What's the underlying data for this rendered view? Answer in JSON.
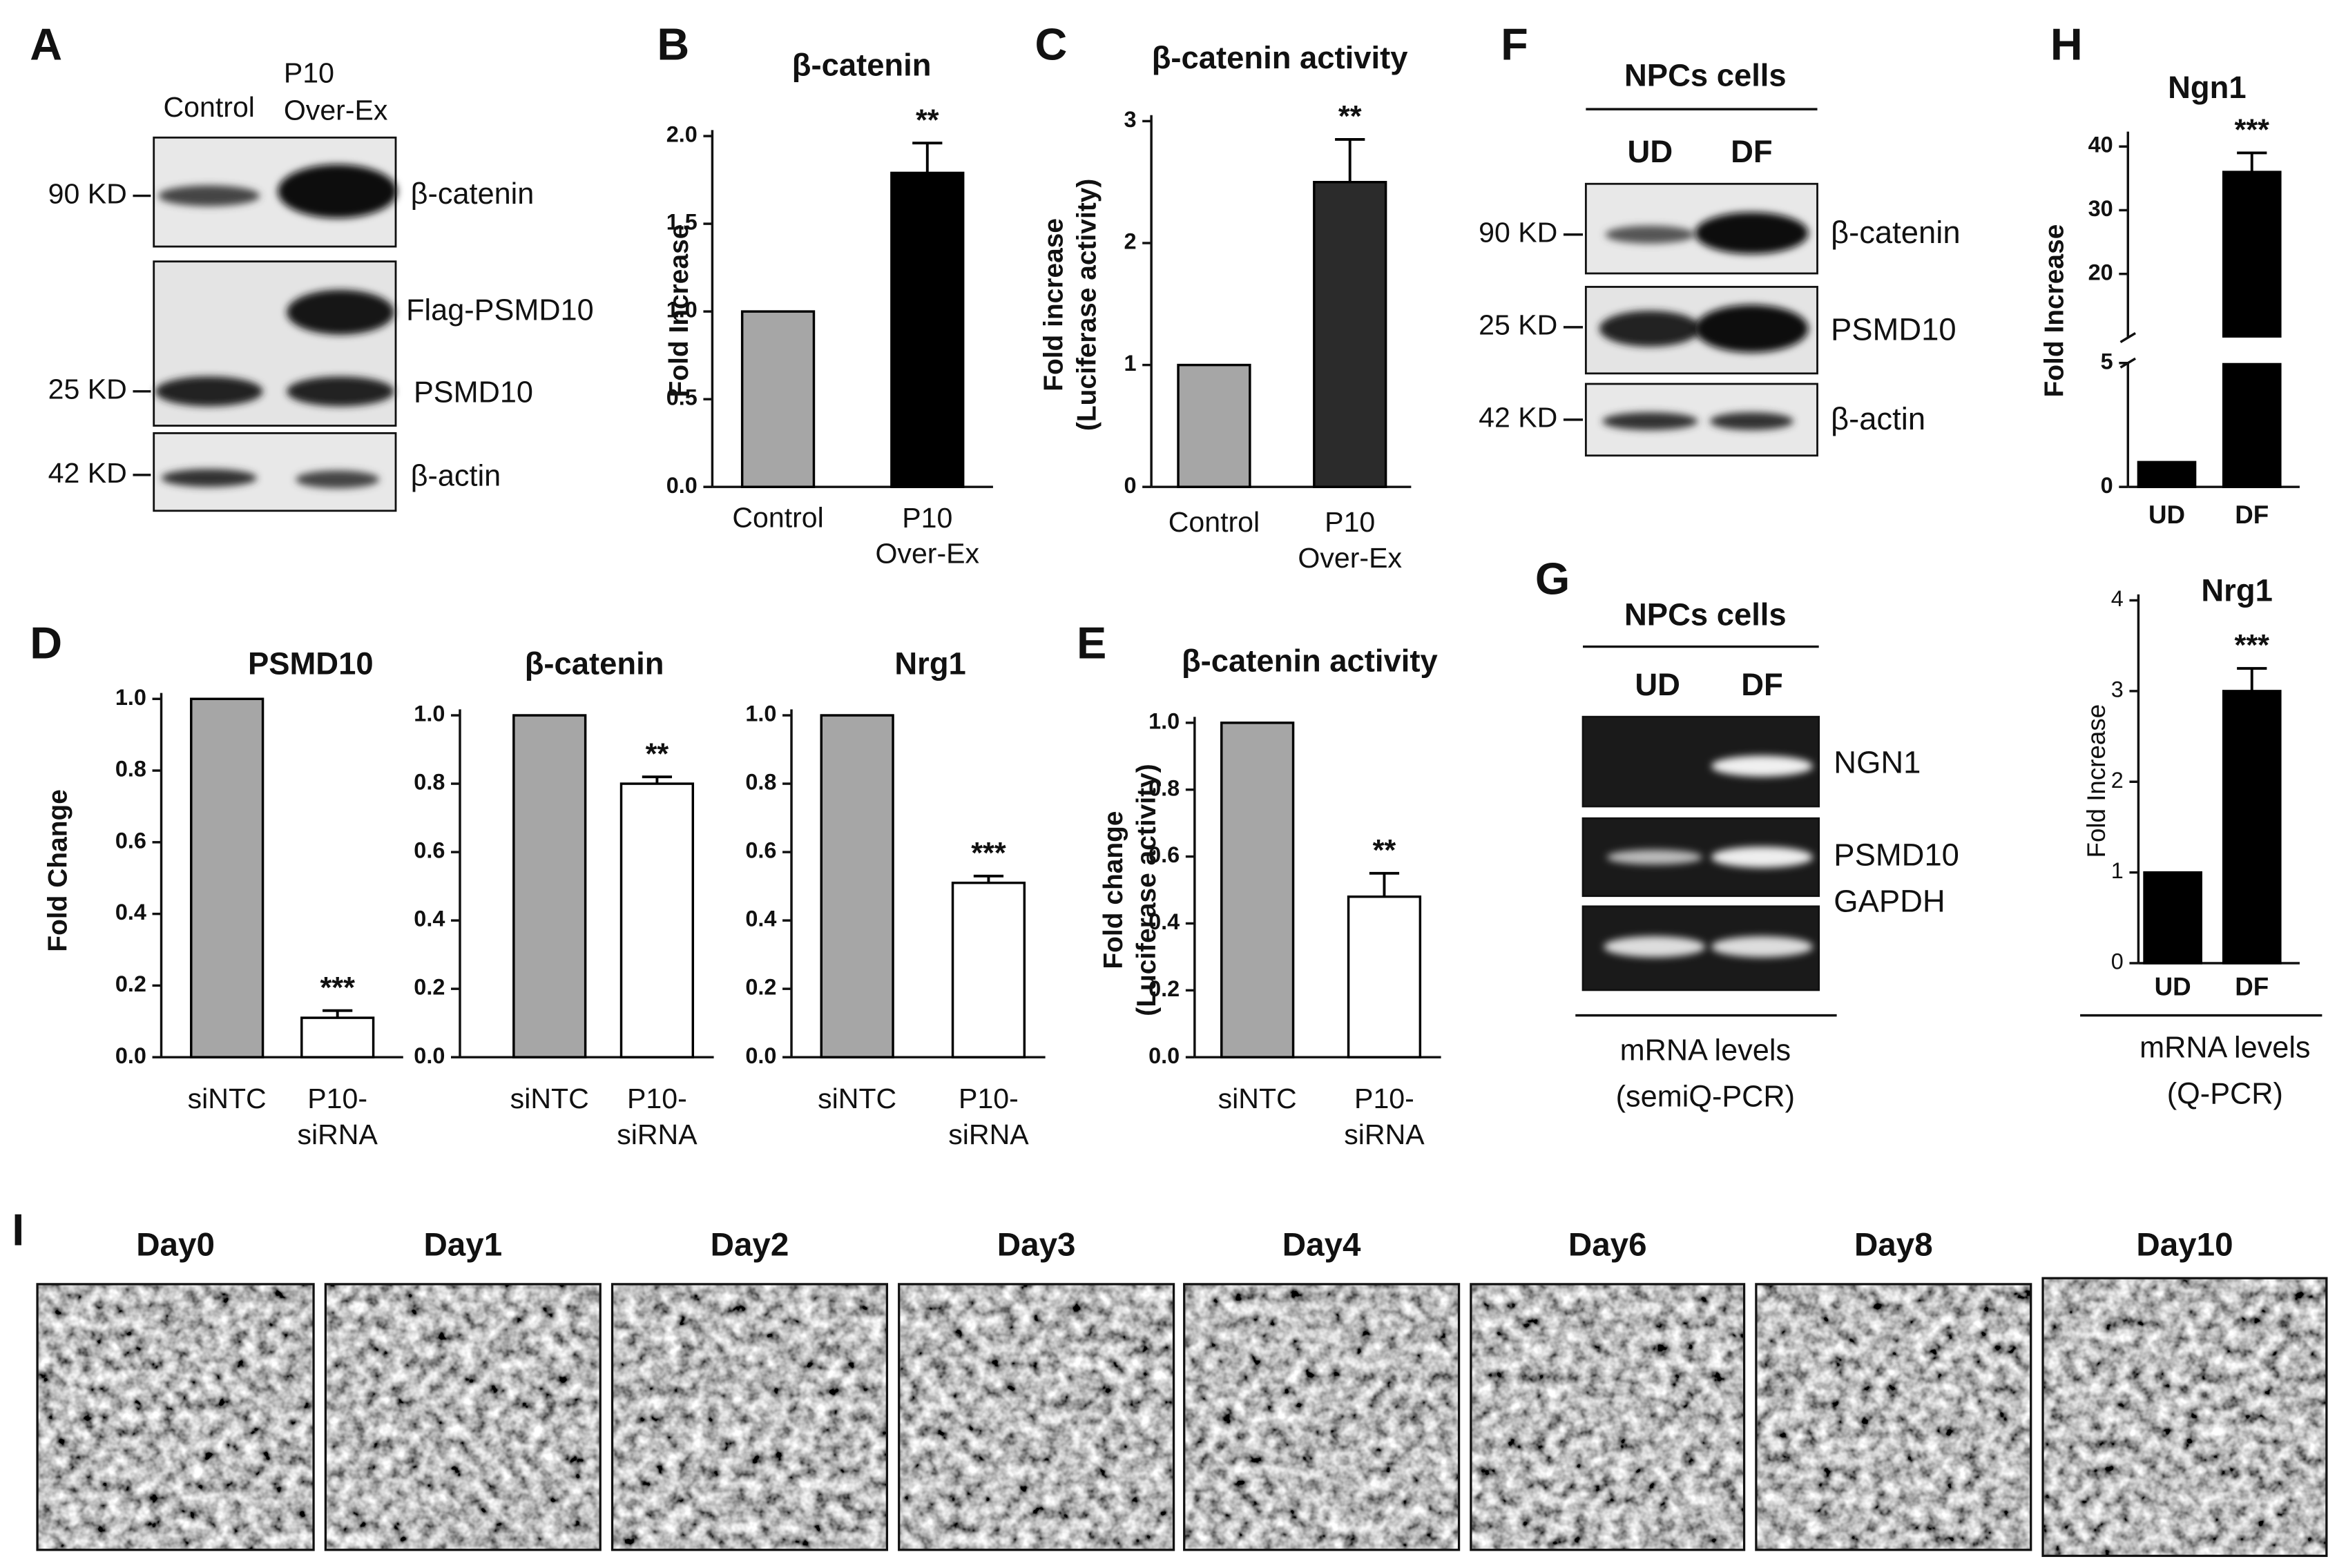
{
  "figure": {
    "panel_A": {
      "label": "A",
      "lanes": [
        "Control",
        [
          "P10",
          "Over-Ex"
        ]
      ],
      "markers": [
        "90 KD",
        "25 KD",
        "42 KD"
      ],
      "bands": [
        "β-catenin",
        "Flag-PSMD10",
        "PSMD10",
        "β-actin"
      ]
    },
    "panel_F": {
      "label": "F",
      "title": "NPCs cells",
      "lanes": [
        "UD",
        "DF"
      ],
      "markers": [
        "90 KD",
        "25 KD",
        "42 KD"
      ],
      "bands": [
        "β-catenin",
        "PSMD10",
        "β-actin"
      ]
    },
    "panel_G": {
      "label": "G",
      "title": "NPCs cells",
      "lanes": [
        "UD",
        "DF"
      ],
      "bands": [
        "NGN1",
        "PSMD10",
        "GAPDH"
      ],
      "footnote": [
        "mRNA levels",
        "(semiQ-PCR)"
      ]
    },
    "panel_I": {
      "label": "I",
      "days": [
        {
          "name": "Day0",
          "color": "#29abe2"
        },
        {
          "name": "Day1",
          "color": "#1fb04c"
        },
        {
          "name": "Day2",
          "color": "#999999"
        },
        {
          "name": "Day3",
          "color": "#4e8a2f"
        },
        {
          "name": "Day4",
          "color": "#ff0000"
        },
        {
          "name": "Day6",
          "color": "#cc0000"
        },
        {
          "name": "Day8",
          "color": "#1f3a7a"
        },
        {
          "name": "Day10",
          "color": "#111111"
        }
      ]
    }
  },
  "chart_data": [
    {
      "type": "bar",
      "panel_label": "B",
      "title": "β-catenin",
      "ylabel": [
        "Fold Increase"
      ],
      "categories": [
        "Control",
        [
          "P10",
          "Over-Ex"
        ]
      ],
      "values": [
        1.0,
        1.79
      ],
      "errors": [
        null,
        0.17
      ],
      "annotations": [
        null,
        "**"
      ],
      "colors": [
        "#a6a6a6",
        "#000000"
      ],
      "ylim": [
        0,
        2.0
      ],
      "yticks": [
        {
          "value": 0,
          "label": "0.0"
        },
        {
          "value": 0.5,
          "label": "0.5"
        },
        {
          "value": 1.0,
          "label": "1.0"
        },
        {
          "value": 1.5,
          "label": "1.5"
        },
        {
          "value": 2.0,
          "label": "2.0"
        }
      ]
    },
    {
      "type": "bar",
      "panel_label": "C",
      "title": "β-catenin activity",
      "ylabel": [
        "Fold increase",
        "(Luciferase activity)"
      ],
      "categories": [
        "Control",
        [
          "P10",
          "Over-Ex"
        ]
      ],
      "values": [
        1.0,
        2.5
      ],
      "errors": [
        null,
        0.35
      ],
      "annotations": [
        null,
        "**"
      ],
      "colors": [
        "#a6a6a6",
        "#2b2b2b"
      ],
      "ylim": [
        0,
        3
      ],
      "yticks": [
        0,
        1,
        2,
        3
      ]
    },
    {
      "type": "bar",
      "panel_label": "D",
      "title": "PSMD10",
      "ylabel": [
        "Fold Change"
      ],
      "categories": [
        "siNTC",
        [
          "P10-",
          "siRNA"
        ]
      ],
      "values": [
        1.0,
        0.11
      ],
      "errors": [
        null,
        0.02
      ],
      "annotations": [
        null,
        "***"
      ],
      "colors": [
        "#a6a6a6",
        "#ffffff"
      ],
      "ylim": [
        0,
        1.0
      ],
      "yticks": [
        {
          "value": 0,
          "label": "0.0"
        },
        0.2,
        0.4,
        0.6,
        0.8,
        {
          "value": 1.0,
          "label": "1.0"
        }
      ]
    },
    {
      "type": "bar",
      "title": "β-catenin",
      "categories": [
        "siNTC",
        [
          "P10-",
          "siRNA"
        ]
      ],
      "values": [
        1.0,
        0.8
      ],
      "errors": [
        null,
        0.02
      ],
      "annotations": [
        null,
        "**"
      ],
      "colors": [
        "#a6a6a6",
        "#ffffff"
      ],
      "ylim": [
        0,
        1.0
      ],
      "yticks": [
        {
          "value": 0,
          "label": "0.0"
        },
        0.2,
        0.4,
        0.6,
        0.8,
        {
          "value": 1.0,
          "label": "1.0"
        }
      ]
    },
    {
      "type": "bar",
      "title": "Nrg1",
      "categories": [
        "siNTC",
        [
          "P10-",
          "siRNA"
        ]
      ],
      "values": [
        1.0,
        0.51
      ],
      "errors": [
        null,
        0.02
      ],
      "annotations": [
        null,
        "***"
      ],
      "colors": [
        "#a6a6a6",
        "#ffffff"
      ],
      "ylim": [
        0,
        1.0
      ],
      "yticks": [
        {
          "value": 0,
          "label": "0.0"
        },
        0.2,
        0.4,
        0.6,
        0.8,
        {
          "value": 1.0,
          "label": "1.0"
        }
      ]
    },
    {
      "type": "bar",
      "panel_label": "E",
      "title": "β-catenin activity",
      "ylabel": [
        "Fold change",
        "(Luciferase activity)"
      ],
      "categories": [
        "siNTC",
        [
          "P10-",
          "siRNA"
        ]
      ],
      "values": [
        1.0,
        0.48
      ],
      "errors": [
        null,
        0.07
      ],
      "annotations": [
        null,
        "**"
      ],
      "colors": [
        "#a6a6a6",
        "#ffffff"
      ],
      "ylim": [
        0,
        1.0
      ],
      "yticks": [
        {
          "value": 0,
          "label": "0.0"
        },
        0.2,
        0.4,
        0.6,
        0.8,
        {
          "value": 1.0,
          "label": "1.0"
        }
      ]
    },
    {
      "type": "bar",
      "panel_label": "H",
      "title": "Ngn1",
      "ylabel": [
        "Fold Increase"
      ],
      "categories": [
        "UD",
        "DF"
      ],
      "values": [
        1,
        36
      ],
      "errors": [
        null,
        3
      ],
      "annotations": [
        null,
        "***"
      ],
      "colors": [
        "#000000",
        "#000000"
      ],
      "ylim": [
        0,
        40
      ],
      "axis_break": [
        5,
        10
      ],
      "yticks": [
        0,
        5,
        20,
        30,
        40
      ]
    },
    {
      "type": "bar",
      "title": "Nrg1",
      "ylabel": [
        "Fold Increase"
      ],
      "categories": [
        "UD",
        "DF"
      ],
      "values": [
        1,
        3
      ],
      "errors": [
        null,
        0.25
      ],
      "annotations": [
        null,
        "***"
      ],
      "colors": [
        "#000000",
        "#000000"
      ],
      "ylim": [
        0,
        4
      ],
      "yticks": [
        0,
        1,
        2,
        3,
        4
      ],
      "footnote": [
        "mRNA levels",
        "(Q-PCR)"
      ]
    }
  ]
}
